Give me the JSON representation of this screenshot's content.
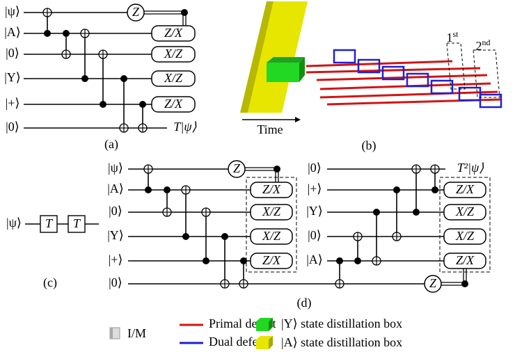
{
  "panel_a": {
    "caption": "(a)",
    "wires": [
      "|ψ⟩",
      "|A⟩",
      "|0⟩",
      "|Y⟩",
      "|+⟩",
      "|0⟩"
    ],
    "gates": [
      "Z",
      "Z/X",
      "X/Z",
      "X/Z",
      "Z/X"
    ],
    "output": "T|ψ⟩"
  },
  "panel_b": {
    "caption": "(b)",
    "time_label": "Time",
    "markers": [
      {
        "number": "1",
        "suffix": "st"
      },
      {
        "number": "2",
        "suffix": "nd"
      }
    ]
  },
  "panel_c": {
    "caption": "(c)",
    "input": "|ψ⟩",
    "gates": [
      "T",
      "T"
    ]
  },
  "panel_d": {
    "caption": "(d)",
    "left_wires": [
      "|ψ⟩",
      "|A⟩",
      "|0⟩",
      "|Y⟩",
      "|+⟩",
      "|0⟩"
    ],
    "left_gates": [
      "Z",
      "Z/X",
      "X/Z",
      "X/Z",
      "Z/X"
    ],
    "right_wires": [
      "|0⟩",
      "|+⟩",
      "|Y⟩",
      "|0⟩",
      "|A⟩"
    ],
    "right_gates": [
      "Z/X",
      "X/Z",
      "X/Z",
      "Z/X",
      "Z"
    ],
    "output": "T²|ψ⟩"
  },
  "legend": [
    {
      "label": "I/M"
    },
    {
      "label": "Primal defect"
    },
    {
      "label": "Dual defect"
    },
    {
      "label": "|Y⟩ state distillation box"
    },
    {
      "label": "|A⟩ state distillation box"
    }
  ]
}
